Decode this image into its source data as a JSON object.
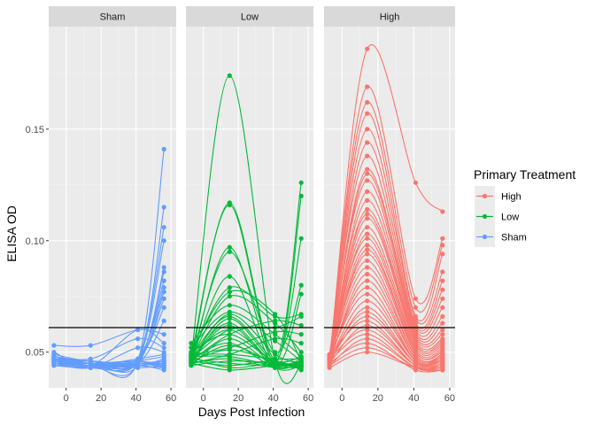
{
  "chart_data": {
    "type": "line",
    "xlabel": "Days Post Infection",
    "ylabel": "ELISA OD",
    "xlim": [
      -10,
      63
    ],
    "ylim": [
      0.034,
      0.196
    ],
    "x_ticks": [
      0,
      20,
      40,
      60
    ],
    "y_ticks": [
      0.05,
      0.1,
      0.15
    ],
    "x_tick_labels": [
      "0",
      "20",
      "40",
      "60"
    ],
    "y_tick_labels": [
      "0.05",
      "0.10",
      "0.15"
    ],
    "threshold": 0.061,
    "grid": true,
    "legend": {
      "title": "Primary Treatment",
      "placement": "right",
      "entries": [
        {
          "label": "High",
          "color": "#F8766D"
        },
        {
          "label": "Low",
          "color": "#00BA38"
        },
        {
          "label": "Sham",
          "color": "#619CFF"
        }
      ]
    },
    "facets": [
      {
        "label": "Sham",
        "color": "#619CFF",
        "x": [
          -7,
          14,
          41,
          56
        ],
        "series": [
          {
            "values": [
              0.047,
              0.045,
              0.046,
              0.141
            ]
          },
          {
            "values": [
              0.046,
              0.044,
              0.045,
              0.115
            ]
          },
          {
            "values": [
              0.048,
              0.046,
              0.047,
              0.106
            ]
          },
          {
            "values": [
              0.045,
              0.044,
              0.046,
              0.1
            ]
          },
          {
            "values": [
              0.047,
              0.045,
              0.044,
              0.088
            ]
          },
          {
            "values": [
              0.046,
              0.046,
              0.045,
              0.086
            ]
          },
          {
            "values": [
              0.048,
              0.044,
              0.046,
              0.082
            ]
          },
          {
            "values": [
              0.045,
              0.045,
              0.047,
              0.079
            ]
          },
          {
            "values": [
              0.047,
              0.043,
              0.045,
              0.077
            ]
          },
          {
            "values": [
              0.046,
              0.045,
              0.046,
              0.074
            ]
          },
          {
            "values": [
              0.049,
              0.046,
              0.047,
              0.07
            ]
          },
          {
            "values": [
              0.047,
              0.044,
              0.045,
              0.064
            ]
          },
          {
            "values": [
              0.053,
              0.053,
              0.06,
              0.058
            ]
          },
          {
            "values": [
              0.05,
              0.044,
              0.06,
              0.054
            ]
          },
          {
            "values": [
              0.048,
              0.047,
              0.056,
              0.052
            ]
          },
          {
            "values": [
              0.045,
              0.043,
              0.052,
              0.05
            ]
          },
          {
            "values": [
              0.044,
              0.043,
              0.046,
              0.048
            ]
          },
          {
            "values": [
              0.046,
              0.045,
              0.044,
              0.047
            ]
          },
          {
            "values": [
              0.047,
              0.044,
              0.045,
              0.046
            ]
          },
          {
            "values": [
              0.045,
              0.043,
              0.044,
              0.045
            ]
          },
          {
            "values": [
              0.044,
              0.044,
              0.043,
              0.044
            ]
          },
          {
            "values": [
              0.046,
              0.045,
              0.046,
              0.044
            ]
          },
          {
            "values": [
              0.047,
              0.046,
              0.044,
              0.043
            ]
          },
          {
            "values": [
              0.045,
              0.044,
              0.045,
              0.043
            ]
          },
          {
            "values": [
              0.044,
              0.043,
              0.044,
              0.042
            ]
          },
          {
            "values": [
              0.046,
              0.044,
              0.047,
              0.049
            ]
          },
          {
            "values": [
              0.048,
              0.045,
              0.045,
              0.045
            ]
          },
          {
            "values": [
              0.045,
              0.046,
              0.044,
              0.046
            ]
          },
          {
            "values": [
              0.047,
              0.043,
              0.045,
              0.044
            ]
          },
          {
            "values": [
              0.046,
              0.044,
              0.046,
              0.043
            ]
          }
        ]
      },
      {
        "label": "Low",
        "color": "#00BA38",
        "x": [
          -7,
          15,
          41,
          56
        ],
        "series": [
          {
            "values": [
              0.047,
              0.174,
              0.046,
              0.044
            ]
          },
          {
            "values": [
              0.046,
              0.117,
              0.047,
              0.126
            ]
          },
          {
            "values": [
              0.048,
              0.116,
              0.045,
              0.12
            ]
          },
          {
            "values": [
              0.045,
              0.097,
              0.046,
              0.101
            ]
          },
          {
            "values": [
              0.047,
              0.095,
              0.05,
              0.08
            ]
          },
          {
            "values": [
              0.046,
              0.084,
              0.044,
              0.076
            ]
          },
          {
            "values": [
              0.049,
              0.079,
              0.066,
              0.067
            ]
          },
          {
            "values": [
              0.05,
              0.077,
              0.067,
              0.046
            ]
          },
          {
            "values": [
              0.047,
              0.075,
              0.063,
              0.05
            ]
          },
          {
            "values": [
              0.054,
              0.071,
              0.058,
              0.048
            ]
          },
          {
            "values": [
              0.052,
              0.068,
              0.055,
              0.046
            ]
          },
          {
            "values": [
              0.046,
              0.067,
              0.049,
              0.045
            ]
          },
          {
            "values": [
              0.048,
              0.066,
              0.046,
              0.044
            ]
          },
          {
            "values": [
              0.045,
              0.065,
              0.045,
              0.047
            ]
          },
          {
            "values": [
              0.047,
              0.063,
              0.044,
              0.045
            ]
          },
          {
            "values": [
              0.046,
              0.062,
              0.043,
              0.044
            ]
          },
          {
            "values": [
              0.048,
              0.06,
              0.045,
              0.043
            ]
          },
          {
            "values": [
              0.05,
              0.058,
              0.046,
              0.048
            ]
          },
          {
            "values": [
              0.044,
              0.056,
              0.044,
              0.046
            ]
          },
          {
            "values": [
              0.047,
              0.054,
              0.043,
              0.045
            ]
          },
          {
            "values": [
              0.045,
              0.053,
              0.045,
              0.044
            ]
          },
          {
            "values": [
              0.046,
              0.051,
              0.046,
              0.043
            ]
          },
          {
            "values": [
              0.049,
              0.049,
              0.047,
              0.047
            ]
          },
          {
            "values": [
              0.048,
              0.048,
              0.044,
              0.045
            ]
          },
          {
            "values": [
              0.045,
              0.047,
              0.043,
              0.044
            ]
          },
          {
            "values": [
              0.044,
              0.046,
              0.045,
              0.043
            ]
          },
          {
            "values": [
              0.047,
              0.045,
              0.044,
              0.046
            ]
          },
          {
            "values": [
              0.046,
              0.044,
              0.046,
              0.042
            ]
          },
          {
            "values": [
              0.048,
              0.043,
              0.045,
              0.044
            ]
          },
          {
            "values": [
              0.045,
              0.042,
              0.044,
              0.045
            ]
          },
          {
            "values": [
              0.047,
              0.06,
              0.061,
              0.066
            ]
          },
          {
            "values": [
              0.046,
              0.058,
              0.064,
              0.062
            ]
          },
          {
            "values": [
              0.049,
              0.052,
              0.059,
              0.058
            ]
          },
          {
            "values": [
              0.045,
              0.049,
              0.056,
              0.054
            ]
          }
        ]
      },
      {
        "label": "High",
        "color": "#F8766D",
        "x": [
          -7,
          14,
          41,
          56
        ],
        "series": [
          {
            "values": [
              0.046,
              0.186,
              0.126,
              0.113
            ]
          },
          {
            "values": [
              0.047,
              0.169,
              0.074,
              0.101
            ]
          },
          {
            "values": [
              0.048,
              0.162,
              0.07,
              0.098
            ]
          },
          {
            "values": [
              0.045,
              0.157,
              0.066,
              0.094
            ]
          },
          {
            "values": [
              0.047,
              0.15,
              0.065,
              0.086
            ]
          },
          {
            "values": [
              0.046,
              0.144,
              0.063,
              0.082
            ]
          },
          {
            "values": [
              0.049,
              0.138,
              0.062,
              0.078
            ]
          },
          {
            "values": [
              0.047,
              0.132,
              0.061,
              0.074
            ]
          },
          {
            "values": [
              0.046,
              0.13,
              0.06,
              0.07
            ]
          },
          {
            "values": [
              0.048,
              0.127,
              0.059,
              0.066
            ]
          },
          {
            "values": [
              0.045,
              0.122,
              0.058,
              0.063
            ]
          },
          {
            "values": [
              0.047,
              0.118,
              0.057,
              0.06
            ]
          },
          {
            "values": [
              0.046,
              0.114,
              0.056,
              0.058
            ]
          },
          {
            "values": [
              0.048,
              0.112,
              0.055,
              0.056
            ]
          },
          {
            "values": [
              0.045,
              0.11,
              0.054,
              0.055
            ]
          },
          {
            "values": [
              0.047,
              0.106,
              0.053,
              0.054
            ]
          },
          {
            "values": [
              0.046,
              0.103,
              0.052,
              0.053
            ]
          },
          {
            "values": [
              0.049,
              0.101,
              0.051,
              0.052
            ]
          },
          {
            "values": [
              0.047,
              0.098,
              0.05,
              0.051
            ]
          },
          {
            "values": [
              0.045,
              0.096,
              0.05,
              0.05
            ]
          },
          {
            "values": [
              0.046,
              0.094,
              0.049,
              0.049
            ]
          },
          {
            "values": [
              0.048,
              0.091,
              0.048,
              0.049
            ]
          },
          {
            "values": [
              0.047,
              0.088,
              0.048,
              0.048
            ]
          },
          {
            "values": [
              0.045,
              0.085,
              0.047,
              0.048
            ]
          },
          {
            "values": [
              0.046,
              0.082,
              0.047,
              0.047
            ]
          },
          {
            "values": [
              0.047,
              0.079,
              0.046,
              0.047
            ]
          },
          {
            "values": [
              0.048,
              0.076,
              0.046,
              0.046
            ]
          },
          {
            "values": [
              0.046,
              0.073,
              0.046,
              0.046
            ]
          },
          {
            "values": [
              0.045,
              0.07,
              0.045,
              0.045
            ]
          },
          {
            "values": [
              0.047,
              0.068,
              0.045,
              0.045
            ]
          },
          {
            "values": [
              0.046,
              0.066,
              0.045,
              0.044
            ]
          },
          {
            "values": [
              0.048,
              0.064,
              0.044,
              0.044
            ]
          },
          {
            "values": [
              0.045,
              0.062,
              0.044,
              0.043
            ]
          },
          {
            "values": [
              0.047,
              0.06,
              0.044,
              0.043
            ]
          },
          {
            "values": [
              0.046,
              0.058,
              0.043,
              0.042
            ]
          },
          {
            "values": [
              0.044,
              0.056,
              0.043,
              0.042
            ]
          },
          {
            "values": [
              0.045,
              0.054,
              0.042,
              0.042
            ]
          },
          {
            "values": [
              0.044,
              0.052,
              0.043,
              0.043
            ]
          },
          {
            "values": [
              0.043,
              0.05,
              0.043,
              0.042
            ]
          }
        ]
      }
    ]
  }
}
